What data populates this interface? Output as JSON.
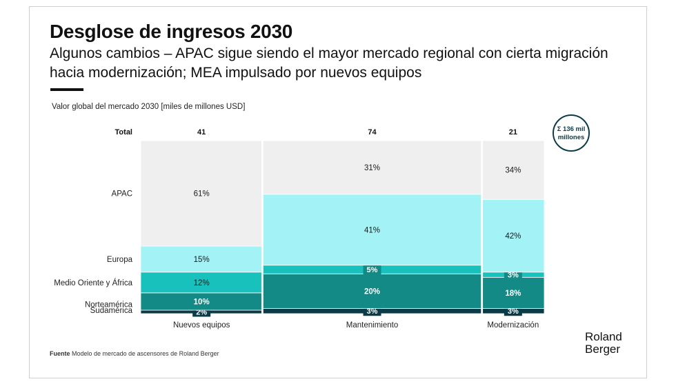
{
  "title": "Desglose de ingresos 2030",
  "subtitle": "Algunos cambios – APAC sigue siendo el mayor mercado regional con cierta migración hacia modernización; MEA impulsado por nuevos equipos",
  "source_label": "Fuente",
  "source_text": "Modelo de mercado de ascensores de Roland Berger",
  "logo": {
    "line1": "Roland",
    "line2": "Berger"
  },
  "total_badge": {
    "line1": "Σ 136 mil",
    "line2": "millones"
  },
  "chart_data": {
    "type": "bar",
    "subtype": "mekko",
    "ylabel": "Valor global del mercado 2030 [miles de millones USD]",
    "total_label": "Total",
    "categories": [
      "Nuevos equipos",
      "Mantenimiento",
      "Modernización"
    ],
    "totals": [
      41,
      74,
      21
    ],
    "total_sum_text": "Σ 136 mil millones",
    "series": [
      {
        "name": "Sudamérica",
        "values": [
          2,
          3,
          3
        ],
        "color": "#0b3b47",
        "text_color": "#ffffff"
      },
      {
        "name": "Norteamérica",
        "values": [
          10,
          20,
          18
        ],
        "color": "#138a86",
        "text_color": "#ffffff"
      },
      {
        "name": "Medio Oriente y África",
        "values": [
          12,
          5,
          3
        ],
        "color": "#19c1bd",
        "text_color": "#1a1a1a"
      },
      {
        "name": "Europa",
        "values": [
          15,
          41,
          42
        ],
        "color": "#a3f2f6",
        "text_color": "#1a1a1a"
      },
      {
        "name": "APAC",
        "values": [
          61,
          31,
          34
        ],
        "color": "#efefef",
        "text_color": "#1a1a1a"
      }
    ],
    "value_suffix": "%",
    "grid": false,
    "legend": "left"
  }
}
